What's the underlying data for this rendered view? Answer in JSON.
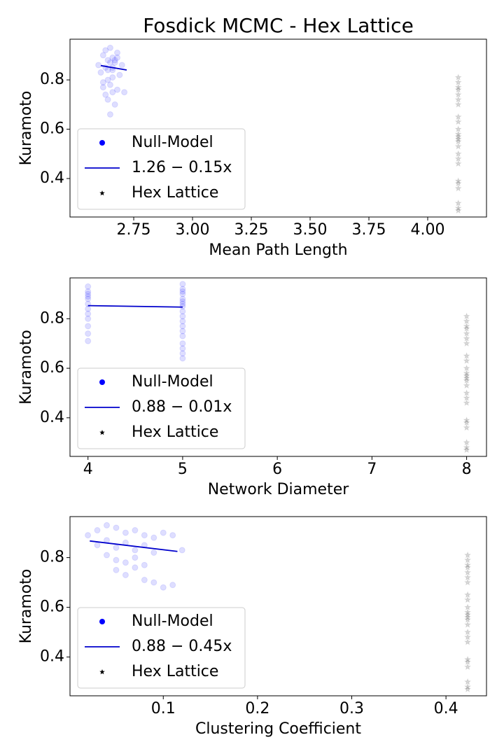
{
  "chart_data": [
    {
      "type": "scatter",
      "title": "Fosdick MCMC - Hex Lattice",
      "xlabel": "Mean Path Length",
      "ylabel": "Kuramoto",
      "xlim": [
        2.479,
        4.25
      ],
      "ylim": [
        0.244,
        0.965
      ],
      "xticks": [
        2.75,
        {
          "value": 3.0,
          "label": "3.00"
        },
        3.25,
        {
          "value": 3.5,
          "label": "3.50"
        },
        3.75,
        {
          "value": 4.0,
          "label": "4.00"
        }
      ],
      "yticks": [
        0.4,
        0.6,
        0.8
      ],
      "legend": "lower left",
      "series": [
        {
          "name": "Null-Model",
          "color": "#0000ff",
          "style": "dot",
          "x": [
            2.6,
            2.62,
            2.63,
            2.64,
            2.65,
            2.66,
            2.67,
            2.68,
            2.7,
            2.61,
            2.63,
            2.65,
            2.66,
            2.67,
            2.69,
            2.62,
            2.64,
            2.65,
            2.66,
            2.68,
            2.63,
            2.64,
            2.66,
            2.67,
            2.65,
            2.62,
            2.64,
            2.66,
            2.68,
            2.71
          ],
          "values": [
            0.86,
            0.9,
            0.92,
            0.88,
            0.93,
            0.89,
            0.87,
            0.91,
            0.86,
            0.83,
            0.85,
            0.87,
            0.84,
            0.88,
            0.82,
            0.79,
            0.8,
            0.78,
            0.81,
            0.76,
            0.74,
            0.72,
            0.75,
            0.7,
            0.66,
            0.77,
            0.84,
            0.85,
            0.89,
            0.75
          ]
        },
        {
          "name": "1.26 − 0.15x",
          "color": "#0000cc",
          "style": "line",
          "x": [
            2.61,
            2.72
          ],
          "values": [
            0.858,
            0.84
          ]
        },
        {
          "name": "Hex Lattice",
          "color": "#000000",
          "style": "star",
          "x": [
            4.13,
            4.13,
            4.13,
            4.13,
            4.13,
            4.13,
            4.13,
            4.13,
            4.13,
            4.13,
            4.13,
            4.13,
            4.13,
            4.13,
            4.13,
            4.13,
            4.13,
            4.13,
            4.13,
            4.13,
            4.13,
            4.13,
            4.13,
            4.13
          ],
          "values": [
            0.81,
            0.79,
            0.77,
            0.76,
            0.74,
            0.72,
            0.7,
            0.65,
            0.63,
            0.6,
            0.58,
            0.57,
            0.56,
            0.55,
            0.53,
            0.5,
            0.48,
            0.46,
            0.39,
            0.38,
            0.36,
            0.3,
            0.28,
            0.27
          ]
        }
      ]
    },
    {
      "type": "scatter",
      "xlabel": "Network Diameter",
      "ylabel": "Kuramoto",
      "xlim": [
        3.81,
        8.21
      ],
      "ylim": [
        0.244,
        0.965
      ],
      "xticks": [
        4,
        5,
        6,
        7,
        8
      ],
      "yticks": [
        0.4,
        0.6,
        0.8
      ],
      "legend": "lower left",
      "series": [
        {
          "name": "Null-Model",
          "color": "#0000ff",
          "style": "dot",
          "x": [
            4,
            4,
            4,
            4,
            4,
            4,
            4,
            4,
            4,
            4,
            4,
            4,
            5,
            5,
            5,
            5,
            5,
            5,
            5,
            5,
            5,
            5,
            5,
            5,
            5,
            5,
            5,
            5,
            5,
            5
          ],
          "values": [
            0.93,
            0.91,
            0.9,
            0.89,
            0.88,
            0.86,
            0.84,
            0.82,
            0.8,
            0.77,
            0.74,
            0.71,
            0.94,
            0.92,
            0.91,
            0.9,
            0.88,
            0.87,
            0.86,
            0.85,
            0.83,
            0.81,
            0.79,
            0.77,
            0.75,
            0.73,
            0.7,
            0.68,
            0.66,
            0.64
          ]
        },
        {
          "name": "0.88 − 0.01x",
          "color": "#0000cc",
          "style": "line",
          "x": [
            4,
            5
          ],
          "values": [
            0.853,
            0.847
          ]
        },
        {
          "name": "Hex Lattice",
          "color": "#000000",
          "style": "star",
          "x": [
            8,
            8,
            8,
            8,
            8,
            8,
            8,
            8,
            8,
            8,
            8,
            8,
            8,
            8,
            8,
            8,
            8,
            8,
            8,
            8,
            8,
            8,
            8,
            8
          ],
          "values": [
            0.81,
            0.79,
            0.77,
            0.76,
            0.74,
            0.72,
            0.7,
            0.65,
            0.63,
            0.6,
            0.58,
            0.57,
            0.56,
            0.55,
            0.53,
            0.5,
            0.48,
            0.46,
            0.39,
            0.38,
            0.36,
            0.3,
            0.28,
            0.27
          ]
        }
      ]
    },
    {
      "type": "scatter",
      "xlabel": "Clustering Coefficient",
      "ylabel": "Kuramoto",
      "xlim": [
        0.001,
        0.443
      ],
      "ylim": [
        0.244,
        0.965
      ],
      "xticks": [
        0.1,
        0.2,
        0.3,
        0.4
      ],
      "yticks": [
        0.4,
        0.6,
        0.8
      ],
      "legend": "lower left",
      "series": [
        {
          "name": "Null-Model",
          "color": "#0000ff",
          "style": "dot",
          "x": [
            0.02,
            0.03,
            0.04,
            0.05,
            0.06,
            0.07,
            0.08,
            0.09,
            0.1,
            0.11,
            0.03,
            0.04,
            0.05,
            0.06,
            0.07,
            0.08,
            0.09,
            0.05,
            0.06,
            0.07,
            0.08,
            0.04,
            0.05,
            0.06,
            0.07,
            0.08,
            0.09,
            0.1,
            0.11,
            0.12
          ],
          "values": [
            0.89,
            0.91,
            0.93,
            0.92,
            0.9,
            0.91,
            0.89,
            0.88,
            0.9,
            0.89,
            0.85,
            0.87,
            0.84,
            0.86,
            0.83,
            0.85,
            0.82,
            0.79,
            0.78,
            0.8,
            0.77,
            0.81,
            0.75,
            0.73,
            0.76,
            0.71,
            0.7,
            0.68,
            0.69,
            0.83
          ]
        },
        {
          "name": "0.88 − 0.45x",
          "color": "#0000cc",
          "style": "line",
          "x": [
            0.022,
            0.115
          ],
          "values": [
            0.867,
            0.825
          ]
        },
        {
          "name": "Hex Lattice",
          "color": "#000000",
          "style": "star",
          "x": [
            0.423,
            0.423,
            0.423,
            0.423,
            0.423,
            0.423,
            0.423,
            0.423,
            0.423,
            0.423,
            0.423,
            0.423,
            0.423,
            0.423,
            0.423,
            0.423,
            0.423,
            0.423,
            0.423,
            0.423,
            0.423,
            0.423,
            0.423,
            0.423
          ],
          "values": [
            0.81,
            0.79,
            0.77,
            0.76,
            0.74,
            0.72,
            0.7,
            0.65,
            0.63,
            0.6,
            0.58,
            0.57,
            0.56,
            0.55,
            0.53,
            0.5,
            0.48,
            0.46,
            0.39,
            0.38,
            0.36,
            0.3,
            0.28,
            0.27
          ]
        }
      ]
    }
  ]
}
